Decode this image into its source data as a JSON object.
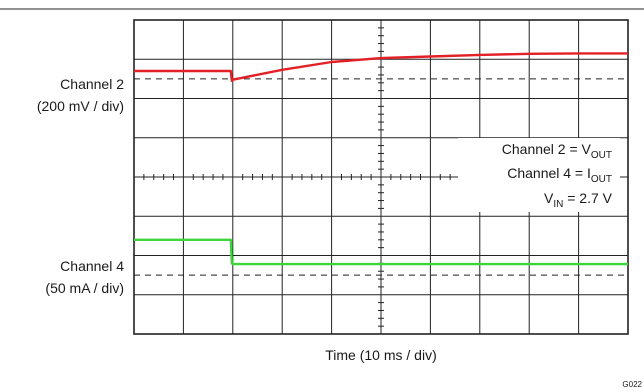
{
  "chart_data": {
    "type": "line",
    "title": "",
    "xlabel": "Time (10 ms / div)",
    "divisions": {
      "x": 10,
      "y": 8
    },
    "grid": true,
    "channels": [
      {
        "id": "channel-2",
        "label": "Channel 2",
        "scale": "(200 mV / div)",
        "color": "#e32026",
        "reference_div": 1.5,
        "trace": {
          "x_div": [
            0,
            1.96,
            1.98,
            2.0,
            3.0,
            4.0,
            5.0,
            6.0,
            7.0,
            8.0,
            9.0,
            10.0
          ],
          "y_div": [
            1.3,
            1.3,
            1.55,
            1.52,
            1.27,
            1.07,
            0.97,
            0.93,
            0.89,
            0.86,
            0.85,
            0.85
          ]
        }
      },
      {
        "id": "channel-4",
        "label": "Channel 4",
        "scale": "(50 mA / div)",
        "color": "#3ad63a",
        "reference_div": 6.5,
        "trace": {
          "x_div": [
            0,
            1.96,
            1.98,
            2.0,
            4.0,
            6.0,
            8.0,
            10.0
          ],
          "y_div": [
            5.6,
            5.6,
            6.2,
            6.22,
            6.22,
            6.22,
            6.22,
            6.22
          ]
        }
      }
    ],
    "annotations": {
      "line1": {
        "text": "Channel 2 = V",
        "sub": "OUT"
      },
      "line2": {
        "text": "Channel 4 = I",
        "sub": "OUT"
      },
      "line3": {
        "text": "V",
        "sub": "IN",
        "text_after": " = 2.7 V"
      }
    },
    "figure_code": "G022"
  },
  "colors": {
    "grid": "#222222",
    "background": "#ffffff"
  }
}
